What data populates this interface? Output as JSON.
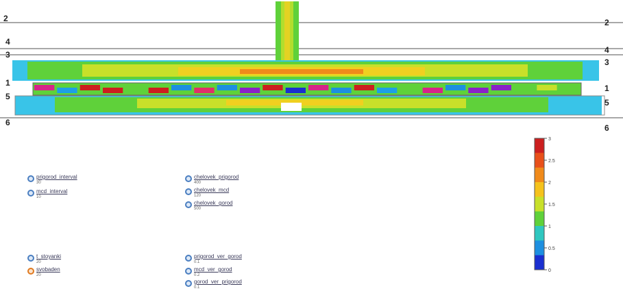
{
  "lane_labels": {
    "left": [
      "2",
      "4",
      "3",
      "1",
      "5",
      "6"
    ],
    "right": [
      "2",
      "4",
      "3",
      "1",
      "5",
      "6"
    ]
  },
  "parameters": {
    "col1_top": [
      {
        "name": "prigorod_interval",
        "value": "30",
        "knob": "blue"
      },
      {
        "name": "mcd_interval",
        "value": "10",
        "knob": "blue"
      }
    ],
    "col2_top": [
      {
        "name": "chelovek_prigorod",
        "value": "400",
        "knob": "blue"
      },
      {
        "name": "chelovek_mcd",
        "value": "120",
        "knob": "blue"
      },
      {
        "name": "chelovek_gorod",
        "value": "500",
        "knob": "blue"
      }
    ],
    "col1_bottom": [
      {
        "name": "t_stoyanki",
        "value": "20",
        "knob": "blue"
      },
      {
        "name": "svobaden",
        "value": "20",
        "knob": "orange"
      }
    ],
    "col2_bottom": [
      {
        "name": "prigorod_ver_gorod",
        "value": "0.1",
        "knob": "blue"
      },
      {
        "name": "mcd_ver_gorod",
        "value": "0.2",
        "knob": "blue"
      },
      {
        "name": "gorod_ver_prigorod",
        "value": "0.1",
        "knob": "blue"
      }
    ]
  },
  "legend": {
    "ticks": [
      "3",
      "2.5",
      "2",
      "1.5",
      "1",
      "0.5",
      "0"
    ],
    "colors": [
      "#cc1f1f",
      "#e8501a",
      "#f08a1a",
      "#f5c21c",
      "#c8e02a",
      "#5fd13a",
      "#2fc7c0",
      "#1d8fe0",
      "#1a2fd0"
    ],
    "range": [
      0,
      3
    ]
  },
  "colors": {
    "track_gray": "#a8a8a8",
    "heat_red": "#d93a2a",
    "heat_yellow": "#f0d020",
    "heat_green": "#5fd13a",
    "heat_cyan": "#39c4e8"
  }
}
